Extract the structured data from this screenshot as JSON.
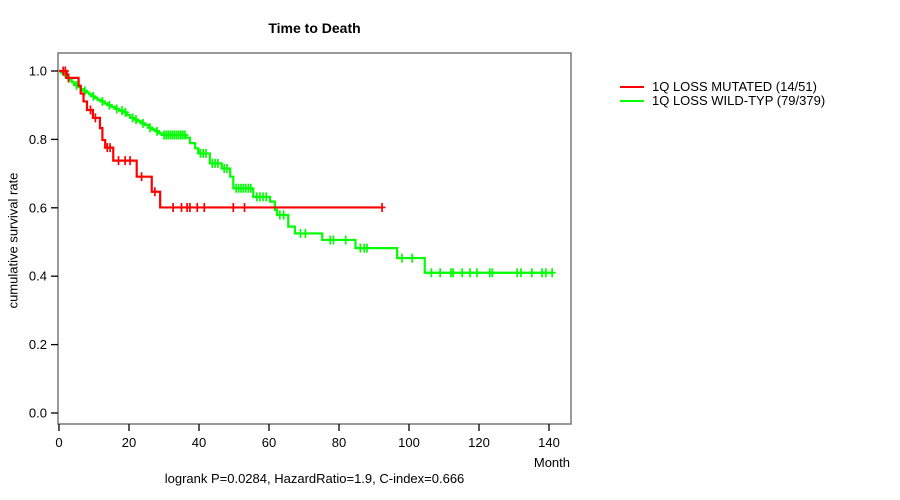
{
  "title": "Time to Death",
  "y_axis_label": "cumulative survival rate",
  "x_axis_unit": "Month",
  "footer": "logrank P=0.0284, HazardRatio=1.9, C-index=0.666",
  "legend": {
    "items": [
      {
        "label": "1Q LOSS MUTATED (14/51)",
        "color": "#ff0000"
      },
      {
        "label": "1Q LOSS WILD-TYP (79/379)",
        "color": "#00ff00"
      }
    ]
  },
  "chart_data": {
    "type": "line",
    "subtype": "kaplan-meier-step",
    "title": "Time to Death",
    "xlabel": "Month",
    "ylabel": "cumulative survival rate",
    "xlim": [
      0,
      146
    ],
    "ylim": [
      0.0,
      1.0
    ],
    "x_ticks": [
      "0",
      "20",
      "40",
      "60",
      "80",
      "100",
      "120",
      "140"
    ],
    "y_ticks": [
      "0.0",
      "0.2",
      "0.4",
      "0.6",
      "0.8",
      "1.0"
    ],
    "grid": false,
    "frame": "box",
    "frame_color": "#6e6e6e",
    "legend_position": "right-outside",
    "annotation": "logrank P=0.0284, HazardRatio=1.9, C-index=0.666",
    "series": [
      {
        "name": "1Q LOSS WILD-TYP (79/379)",
        "color": "#00ff00",
        "n": 379,
        "events": 79,
        "end_time": 140.9,
        "steps": [
          [
            0,
            1.0
          ],
          [
            0.6,
            0.995
          ],
          [
            1.2,
            0.989
          ],
          [
            1.8,
            0.984
          ],
          [
            2.4,
            0.979
          ],
          [
            3.0,
            0.974
          ],
          [
            3.6,
            0.968
          ],
          [
            4.2,
            0.963
          ],
          [
            4.8,
            0.958
          ],
          [
            5.5,
            0.953
          ],
          [
            6.2,
            0.947
          ],
          [
            7.0,
            0.942
          ],
          [
            7.8,
            0.937
          ],
          [
            8.6,
            0.932
          ],
          [
            9.4,
            0.926
          ],
          [
            10.2,
            0.921
          ],
          [
            11.0,
            0.916
          ],
          [
            12.0,
            0.911
          ],
          [
            13.0,
            0.905
          ],
          [
            14.0,
            0.9
          ],
          [
            15.0,
            0.895
          ],
          [
            16.0,
            0.889
          ],
          [
            17.2,
            0.884
          ],
          [
            18.4,
            0.879
          ],
          [
            19.4,
            0.871
          ],
          [
            20.3,
            0.863
          ],
          [
            21.4,
            0.858
          ],
          [
            22.4,
            0.853
          ],
          [
            23.5,
            0.847
          ],
          [
            24.6,
            0.842
          ],
          [
            25.6,
            0.834
          ],
          [
            26.6,
            0.829
          ],
          [
            27.5,
            0.824
          ],
          [
            28.5,
            0.818
          ],
          [
            29.3,
            0.813
          ],
          [
            36.3,
            0.805
          ],
          [
            37.4,
            0.789
          ],
          [
            38.9,
            0.774
          ],
          [
            39.8,
            0.759
          ],
          [
            43.1,
            0.73
          ],
          [
            46.5,
            0.715
          ],
          [
            48.9,
            0.691
          ],
          [
            49.8,
            0.657
          ],
          [
            55.5,
            0.632
          ],
          [
            60.3,
            0.618
          ],
          [
            61.7,
            0.594
          ],
          [
            62.3,
            0.579
          ],
          [
            65.5,
            0.545
          ],
          [
            67.4,
            0.525
          ],
          [
            75.2,
            0.506
          ],
          [
            84.7,
            0.482
          ],
          [
            96.6,
            0.453
          ],
          [
            104.5,
            0.41
          ]
        ],
        "censors": [
          [
            2.8,
            0.979
          ],
          [
            5.0,
            0.958
          ],
          [
            7.4,
            0.942
          ],
          [
            9.8,
            0.926
          ],
          [
            12.4,
            0.911
          ],
          [
            14.4,
            0.9
          ],
          [
            16.5,
            0.889
          ],
          [
            18.0,
            0.884
          ],
          [
            19.0,
            0.879
          ],
          [
            21.0,
            0.863
          ],
          [
            22.0,
            0.858
          ],
          [
            24.0,
            0.847
          ],
          [
            26.0,
            0.834
          ],
          [
            28.0,
            0.824
          ],
          [
            30.0,
            0.813
          ],
          [
            30.6,
            0.813
          ],
          [
            31.2,
            0.813
          ],
          [
            31.8,
            0.813
          ],
          [
            32.4,
            0.813
          ],
          [
            33.0,
            0.813
          ],
          [
            33.6,
            0.813
          ],
          [
            34.2,
            0.813
          ],
          [
            34.8,
            0.813
          ],
          [
            35.4,
            0.813
          ],
          [
            36.0,
            0.813
          ],
          [
            40.4,
            0.759
          ],
          [
            41.2,
            0.759
          ],
          [
            42.0,
            0.759
          ],
          [
            43.8,
            0.73
          ],
          [
            44.6,
            0.73
          ],
          [
            45.4,
            0.73
          ],
          [
            47.2,
            0.715
          ],
          [
            48.0,
            0.715
          ],
          [
            50.6,
            0.657
          ],
          [
            51.3,
            0.657
          ],
          [
            52.0,
            0.657
          ],
          [
            52.7,
            0.657
          ],
          [
            53.4,
            0.657
          ],
          [
            54.1,
            0.657
          ],
          [
            54.8,
            0.657
          ],
          [
            56.5,
            0.632
          ],
          [
            57.4,
            0.632
          ],
          [
            58.3,
            0.632
          ],
          [
            59.2,
            0.632
          ],
          [
            63.1,
            0.579
          ],
          [
            64.2,
            0.579
          ],
          [
            69.0,
            0.525
          ],
          [
            70.4,
            0.525
          ],
          [
            77.5,
            0.506
          ],
          [
            78.4,
            0.506
          ],
          [
            81.9,
            0.506
          ],
          [
            86.1,
            0.482
          ],
          [
            87.2,
            0.482
          ],
          [
            88.0,
            0.482
          ],
          [
            98.0,
            0.453
          ],
          [
            100.9,
            0.453
          ],
          [
            106.4,
            0.41
          ],
          [
            108.9,
            0.41
          ],
          [
            112.0,
            0.41
          ],
          [
            112.6,
            0.41
          ],
          [
            115.2,
            0.41
          ],
          [
            117.4,
            0.41
          ],
          [
            119.4,
            0.41
          ],
          [
            123.1,
            0.41
          ],
          [
            123.8,
            0.41
          ],
          [
            130.9,
            0.41
          ],
          [
            132.0,
            0.41
          ],
          [
            135.1,
            0.41
          ],
          [
            138.0,
            0.41
          ],
          [
            139.1,
            0.41
          ],
          [
            140.9,
            0.41
          ]
        ]
      },
      {
        "name": "1Q LOSS MUTATED (14/51)",
        "color": "#ff0000",
        "n": 51,
        "events": 14,
        "end_time": 92.3,
        "steps": [
          [
            0,
            1.0
          ],
          [
            2.2,
            0.98
          ],
          [
            5.6,
            0.957
          ],
          [
            6.2,
            0.934
          ],
          [
            7.0,
            0.911
          ],
          [
            8.0,
            0.886
          ],
          [
            9.7,
            0.863
          ],
          [
            11.7,
            0.833
          ],
          [
            12.4,
            0.798
          ],
          [
            13.2,
            0.776
          ],
          [
            15.5,
            0.738
          ],
          [
            22.2,
            0.691
          ],
          [
            26.5,
            0.647
          ],
          [
            28.9,
            0.601
          ]
        ],
        "censors": [
          [
            1.2,
            1.0
          ],
          [
            1.8,
            1.0
          ],
          [
            2.7,
            0.98
          ],
          [
            9.0,
            0.886
          ],
          [
            10.4,
            0.863
          ],
          [
            13.8,
            0.776
          ],
          [
            14.6,
            0.776
          ],
          [
            17.0,
            0.738
          ],
          [
            18.9,
            0.738
          ],
          [
            20.3,
            0.738
          ],
          [
            23.6,
            0.691
          ],
          [
            27.4,
            0.647
          ],
          [
            32.6,
            0.601
          ],
          [
            35.0,
            0.601
          ],
          [
            36.6,
            0.601
          ],
          [
            37.4,
            0.601
          ],
          [
            39.5,
            0.601
          ],
          [
            41.5,
            0.601
          ],
          [
            49.8,
            0.601
          ],
          [
            53.0,
            0.601
          ],
          [
            92.3,
            0.601
          ]
        ]
      }
    ]
  }
}
